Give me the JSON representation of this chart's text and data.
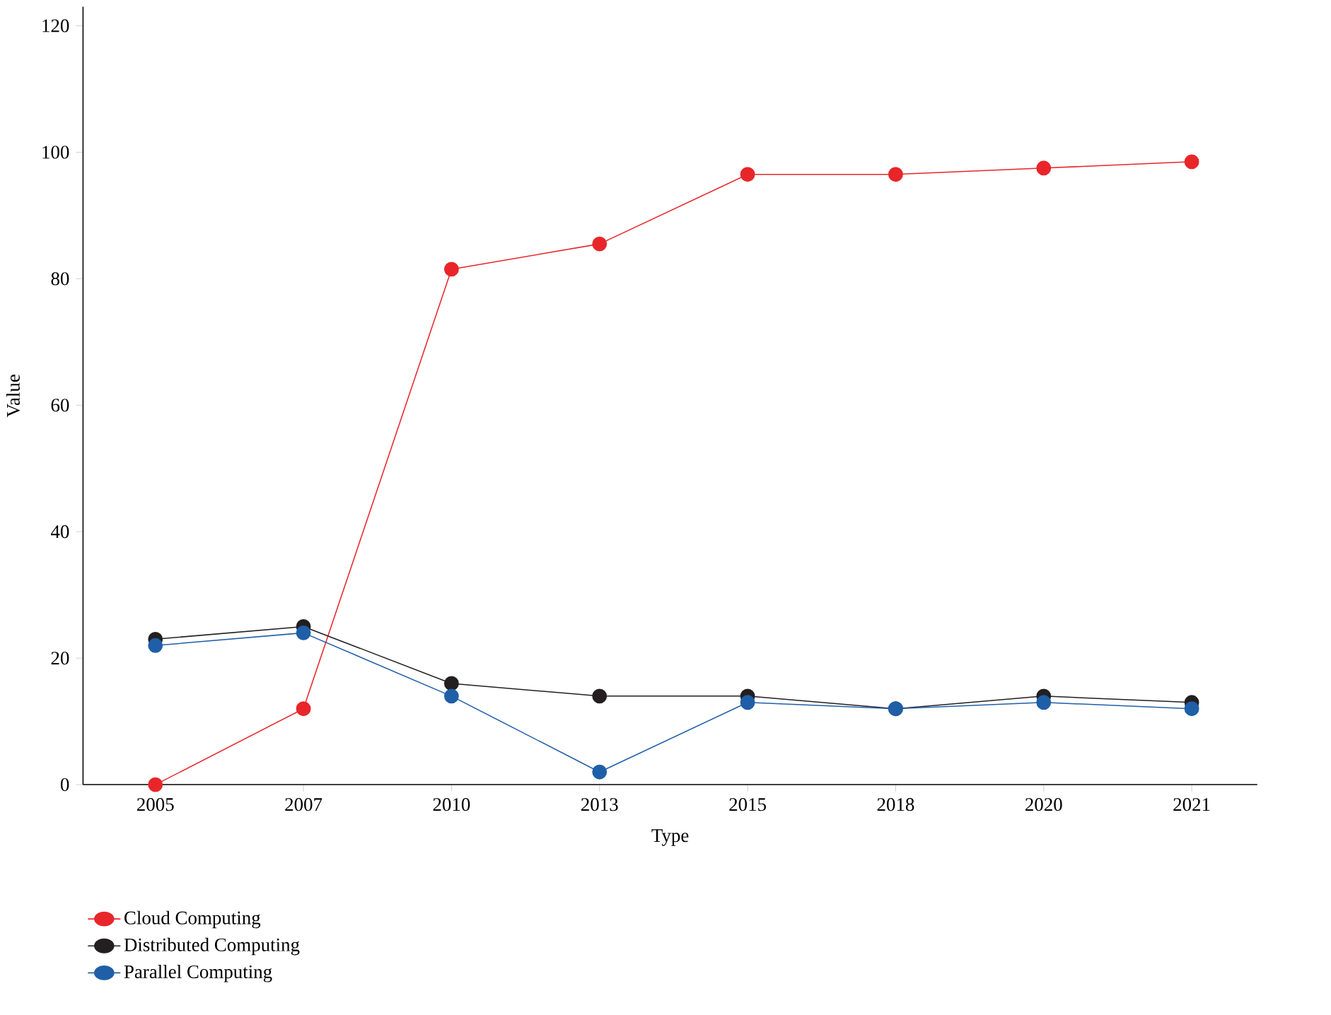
{
  "chart_data": {
    "type": "line",
    "xlabel": "Type",
    "ylabel": "Value",
    "categories": [
      "2005",
      "2007",
      "2010",
      "2013",
      "2015",
      "2018",
      "2020",
      "2021"
    ],
    "series": [
      {
        "name": "Cloud Computing",
        "color": "#e8262a",
        "values": [
          0,
          12,
          81.5,
          85.5,
          96.5,
          96.5,
          97.5,
          98.5
        ]
      },
      {
        "name": "Distributed Computing",
        "color": "#231f20",
        "values": [
          23,
          25,
          16,
          14,
          14,
          12,
          14,
          13
        ]
      },
      {
        "name": "Parallel Computing",
        "color": "#1f5fa8",
        "values": [
          22,
          24,
          14,
          2,
          13,
          12,
          13,
          12
        ]
      }
    ],
    "ylim": [
      0,
      123
    ],
    "yticks": [
      0,
      20,
      40,
      60,
      80,
      100,
      120
    ],
    "grid": false,
    "legend": "bottom left",
    "marker": "circle",
    "line_style": "solid"
  }
}
